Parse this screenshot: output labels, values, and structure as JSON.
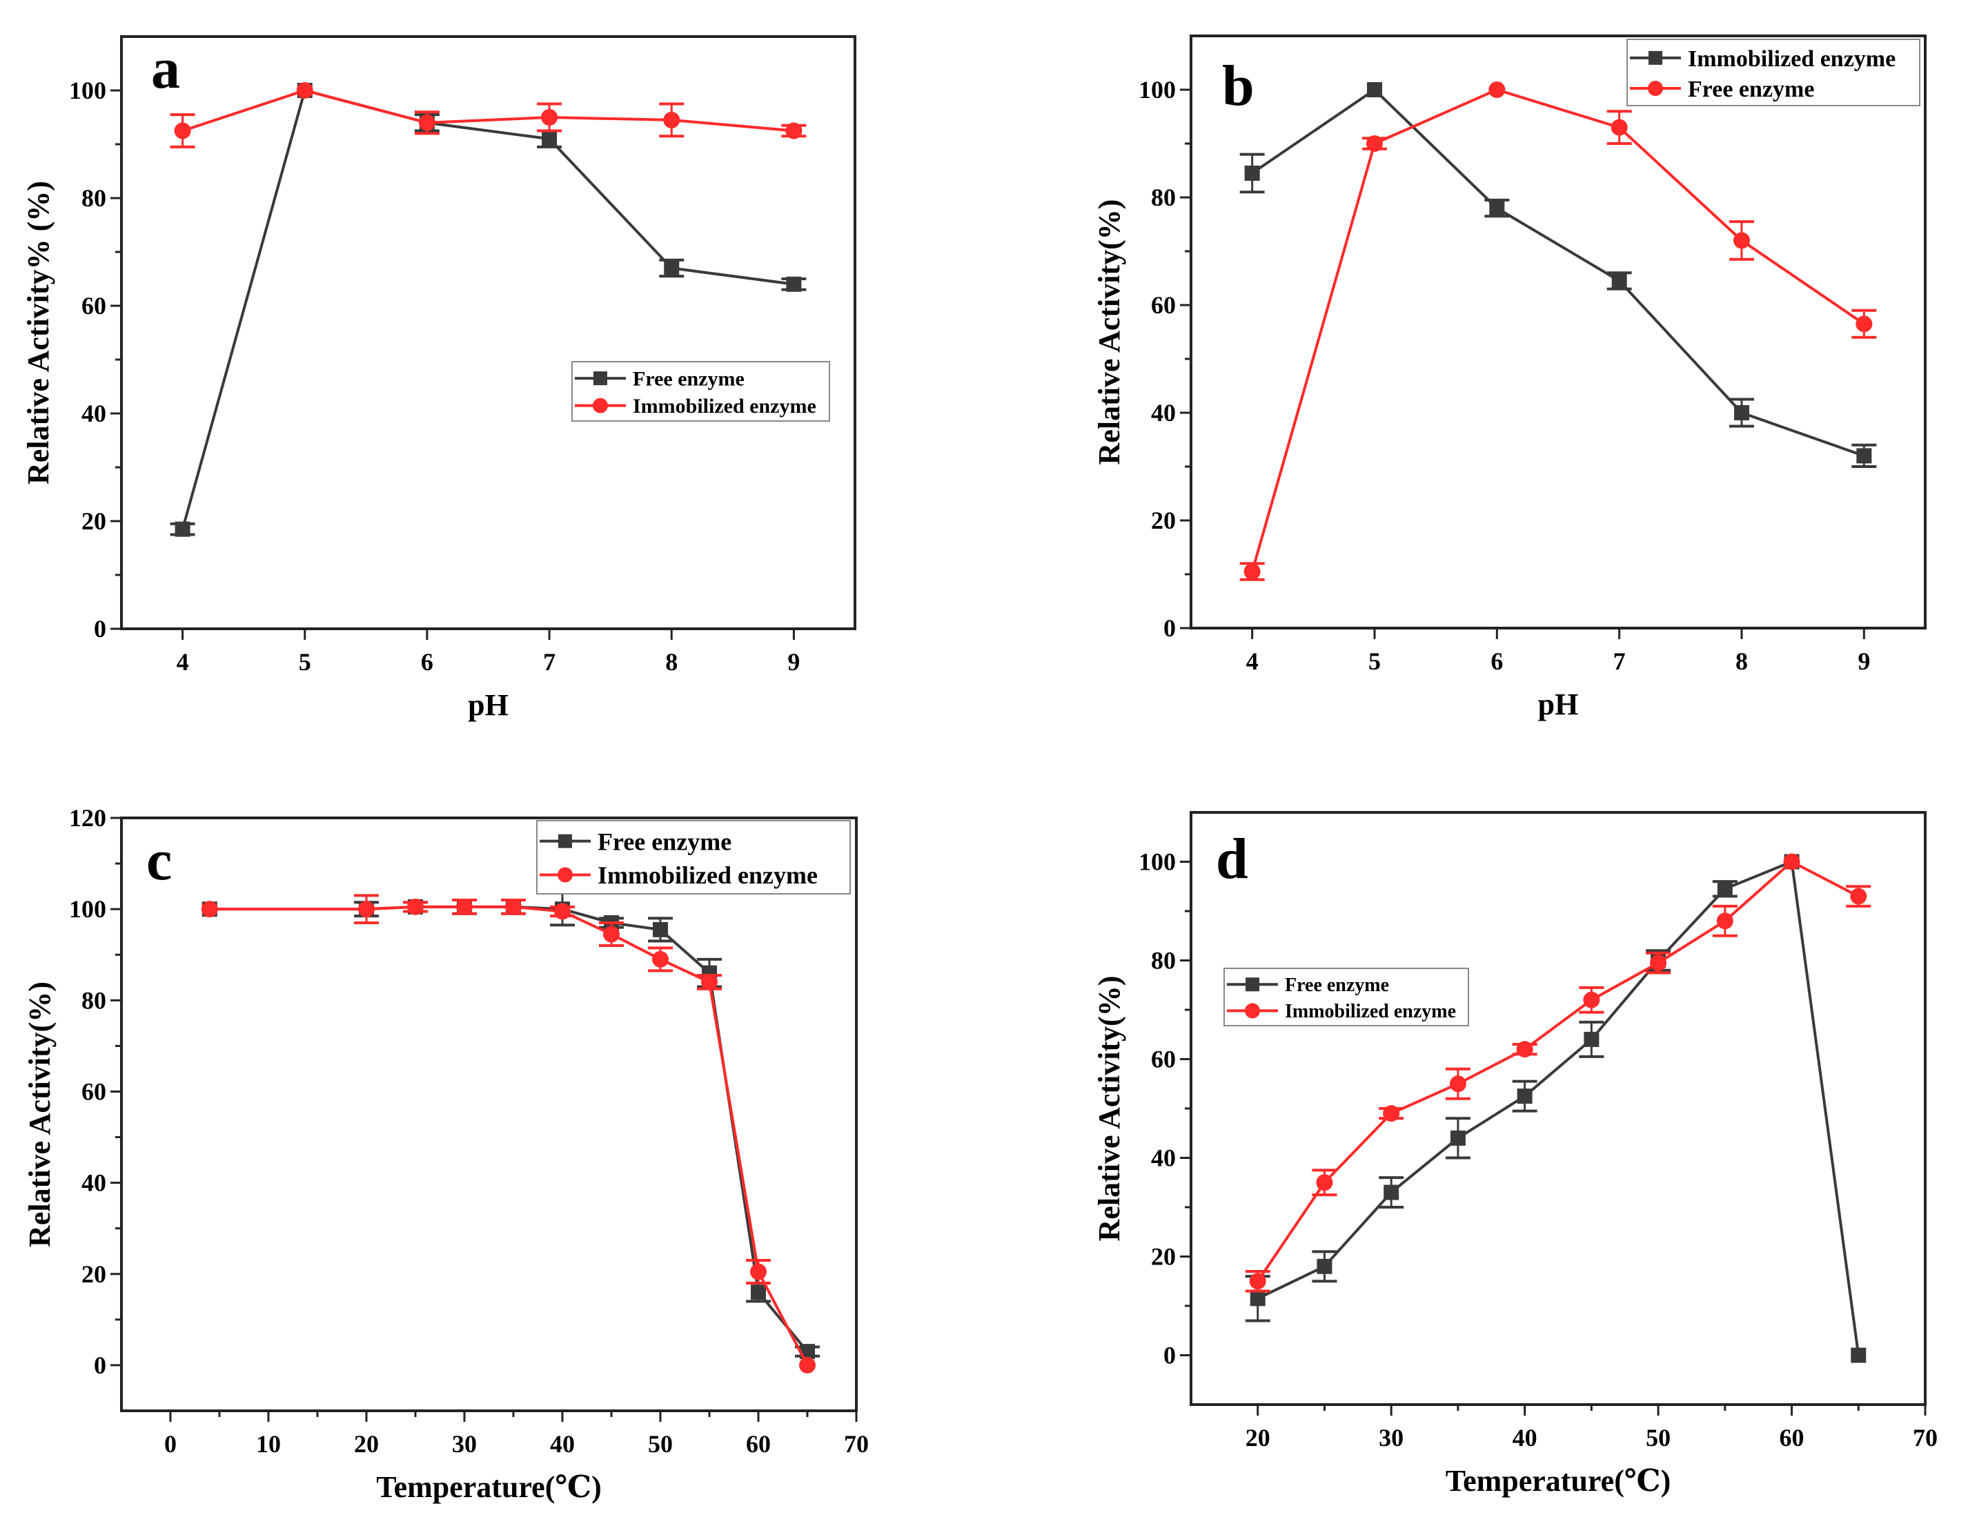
{
  "colors": {
    "dark": "#3a3a3a",
    "red": "#ff2a2a"
  },
  "chart_data": [
    {
      "id": "a",
      "type": "line",
      "panel_label": "a",
      "xlabel": "pH",
      "ylabel": "Relative Activity% (%)",
      "xlim": [
        3.5,
        9.5
      ],
      "ylim": [
        0,
        110
      ],
      "xticks": [
        4,
        5,
        6,
        7,
        8,
        9
      ],
      "yticks": [
        0,
        20,
        40,
        60,
        80,
        100
      ],
      "yminor": [
        10,
        30,
        50,
        70,
        90
      ],
      "xminor": [],
      "legend": "center-right",
      "series": [
        {
          "name": "Free enzyme",
          "color": "dark",
          "marker": "square",
          "x": [
            4,
            5,
            6,
            7,
            8,
            9
          ],
          "y": [
            18.5,
            100,
            94,
            91,
            67,
            64
          ],
          "err": [
            1,
            0,
            1.5,
            1.5,
            1.5,
            1
          ]
        },
        {
          "name": "Immobilized enzyme",
          "color": "red",
          "marker": "circle",
          "x": [
            4,
            5,
            6,
            7,
            8,
            9
          ],
          "y": [
            92.5,
            100,
            94,
            95,
            94.5,
            92.5
          ],
          "err": [
            3,
            0,
            2,
            2.5,
            3,
            1
          ]
        }
      ]
    },
    {
      "id": "b",
      "type": "line",
      "panel_label": "b",
      "xlabel": "pH",
      "ylabel": "Relative Activity(%)",
      "xlim": [
        3.5,
        9.5
      ],
      "ylim": [
        0,
        110
      ],
      "xticks": [
        4,
        5,
        6,
        7,
        8,
        9
      ],
      "yticks": [
        0,
        20,
        40,
        60,
        80,
        100
      ],
      "yminor": [
        10,
        30,
        50,
        70,
        90
      ],
      "xminor": [],
      "legend": "top-right",
      "series": [
        {
          "name": "Immobilized enzyme",
          "color": "dark",
          "marker": "square",
          "x": [
            4,
            5,
            6,
            7,
            8,
            9
          ],
          "y": [
            84.5,
            100,
            78,
            64.5,
            40,
            32
          ],
          "err": [
            3.5,
            0,
            1.5,
            1.5,
            2.5,
            2
          ]
        },
        {
          "name": "Free enzyme",
          "color": "red",
          "marker": "circle",
          "x": [
            4,
            5,
            6,
            7,
            8,
            9
          ],
          "y": [
            10.5,
            90,
            100,
            93,
            72,
            56.5
          ],
          "err": [
            1.5,
            1,
            0,
            3,
            3.5,
            2.5
          ]
        }
      ]
    },
    {
      "id": "c",
      "type": "line",
      "panel_label": "c",
      "xlabel": "Temperature(℃)",
      "ylabel": "Relative Activity(%)",
      "xlim": [
        -5,
        70
      ],
      "ylim": [
        -10,
        120
      ],
      "xticks": [
        0,
        10,
        20,
        30,
        40,
        50,
        60,
        70
      ],
      "yticks": [
        0,
        20,
        40,
        60,
        80,
        100,
        120
      ],
      "yminor": [
        10,
        30,
        50,
        70,
        90,
        110
      ],
      "xminor": [
        5,
        15,
        25,
        35,
        45,
        55,
        65
      ],
      "legend": "top-right",
      "series": [
        {
          "name": "Free enzyme",
          "color": "dark",
          "marker": "square",
          "x": [
            4,
            20,
            25,
            30,
            35,
            40,
            45,
            50,
            55,
            60,
            65
          ],
          "y": [
            100,
            100,
            100.5,
            100.5,
            100.5,
            100,
            97,
            95.5,
            86,
            16,
            3
          ],
          "err": [
            0,
            1.5,
            1,
            1.5,
            1.5,
            3.5,
            1,
            2.5,
            3,
            2,
            1
          ]
        },
        {
          "name": "Immobilized enzyme",
          "color": "red",
          "marker": "circle",
          "x": [
            4,
            20,
            25,
            30,
            35,
            40,
            45,
            50,
            55,
            60,
            65
          ],
          "y": [
            100,
            100,
            100.5,
            100.5,
            100.5,
            99.5,
            94.5,
            89,
            84,
            20.5,
            0
          ],
          "err": [
            0,
            3,
            1,
            1.5,
            1.5,
            1,
            2.5,
            2.5,
            1.5,
            2.5,
            0
          ]
        }
      ]
    },
    {
      "id": "d",
      "type": "line",
      "panel_label": "d",
      "xlabel": "Temperature(℃)",
      "ylabel": "Relative Activity(%)",
      "xlim": [
        15,
        70
      ],
      "ylim": [
        -10,
        110
      ],
      "xticks": [
        20,
        30,
        40,
        50,
        60,
        70
      ],
      "yticks": [
        0,
        20,
        40,
        60,
        80,
        100
      ],
      "yminor": [
        10,
        30,
        50,
        70,
        90
      ],
      "xminor": [
        25,
        35,
        45,
        55,
        65
      ],
      "legend": "center-left",
      "series": [
        {
          "name": "Free enzyme",
          "color": "dark",
          "marker": "square",
          "x": [
            20,
            25,
            30,
            35,
            40,
            45,
            50,
            55,
            60,
            65
          ],
          "y": [
            11.5,
            18,
            33,
            44,
            52.5,
            64,
            80,
            94.5,
            100,
            0
          ],
          "err": [
            4.5,
            3,
            3,
            4,
            3,
            3.5,
            2,
            1.5,
            0,
            0
          ]
        },
        {
          "name": "Immobilized enzyme",
          "color": "red",
          "marker": "circle",
          "x": [
            20,
            25,
            30,
            35,
            40,
            45,
            50,
            55,
            60,
            65
          ],
          "y": [
            15,
            35,
            49,
            55,
            62,
            72,
            79.5,
            88,
            100,
            93
          ],
          "err": [
            2,
            2.5,
            1,
            3,
            1,
            2.5,
            2,
            3,
            0,
            2
          ]
        }
      ]
    }
  ]
}
